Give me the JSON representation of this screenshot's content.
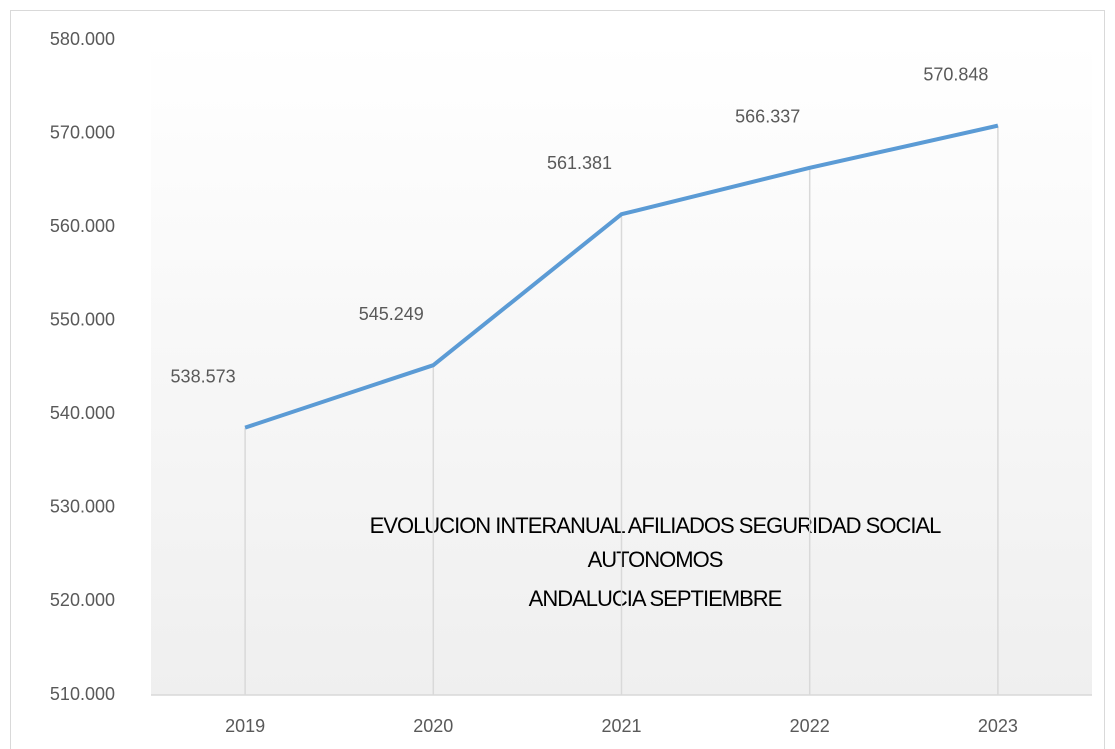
{
  "chart_data": {
    "type": "line",
    "title": [
      "EVOLUCION INTERANUAL AFILIADOS SEGURIDAD SOCIAL",
      "AUTONOMOS",
      "ANDALUCIA  SEPTIEMBRE"
    ],
    "categories": [
      "2019",
      "2020",
      "2021",
      "2022",
      "2023"
    ],
    "values": [
      538573,
      545249,
      561381,
      566337,
      570848
    ],
    "value_labels": [
      "538.573",
      "545.249",
      "561.381",
      "566.337",
      "570.848"
    ],
    "color": "#5b9bd5",
    "ylim": [
      510000,
      580000
    ],
    "yticks": [
      {
        "value": 510000,
        "label": "510.000"
      },
      {
        "value": 520000,
        "label": "520.000"
      },
      {
        "value": 530000,
        "label": "530.000"
      },
      {
        "value": 540000,
        "label": "540.000"
      },
      {
        "value": 550000,
        "label": "550.000"
      },
      {
        "value": 560000,
        "label": "560.000"
      },
      {
        "value": 570000,
        "label": "570.000"
      },
      {
        "value": 580000,
        "label": "580.000"
      }
    ],
    "grid": false
  }
}
